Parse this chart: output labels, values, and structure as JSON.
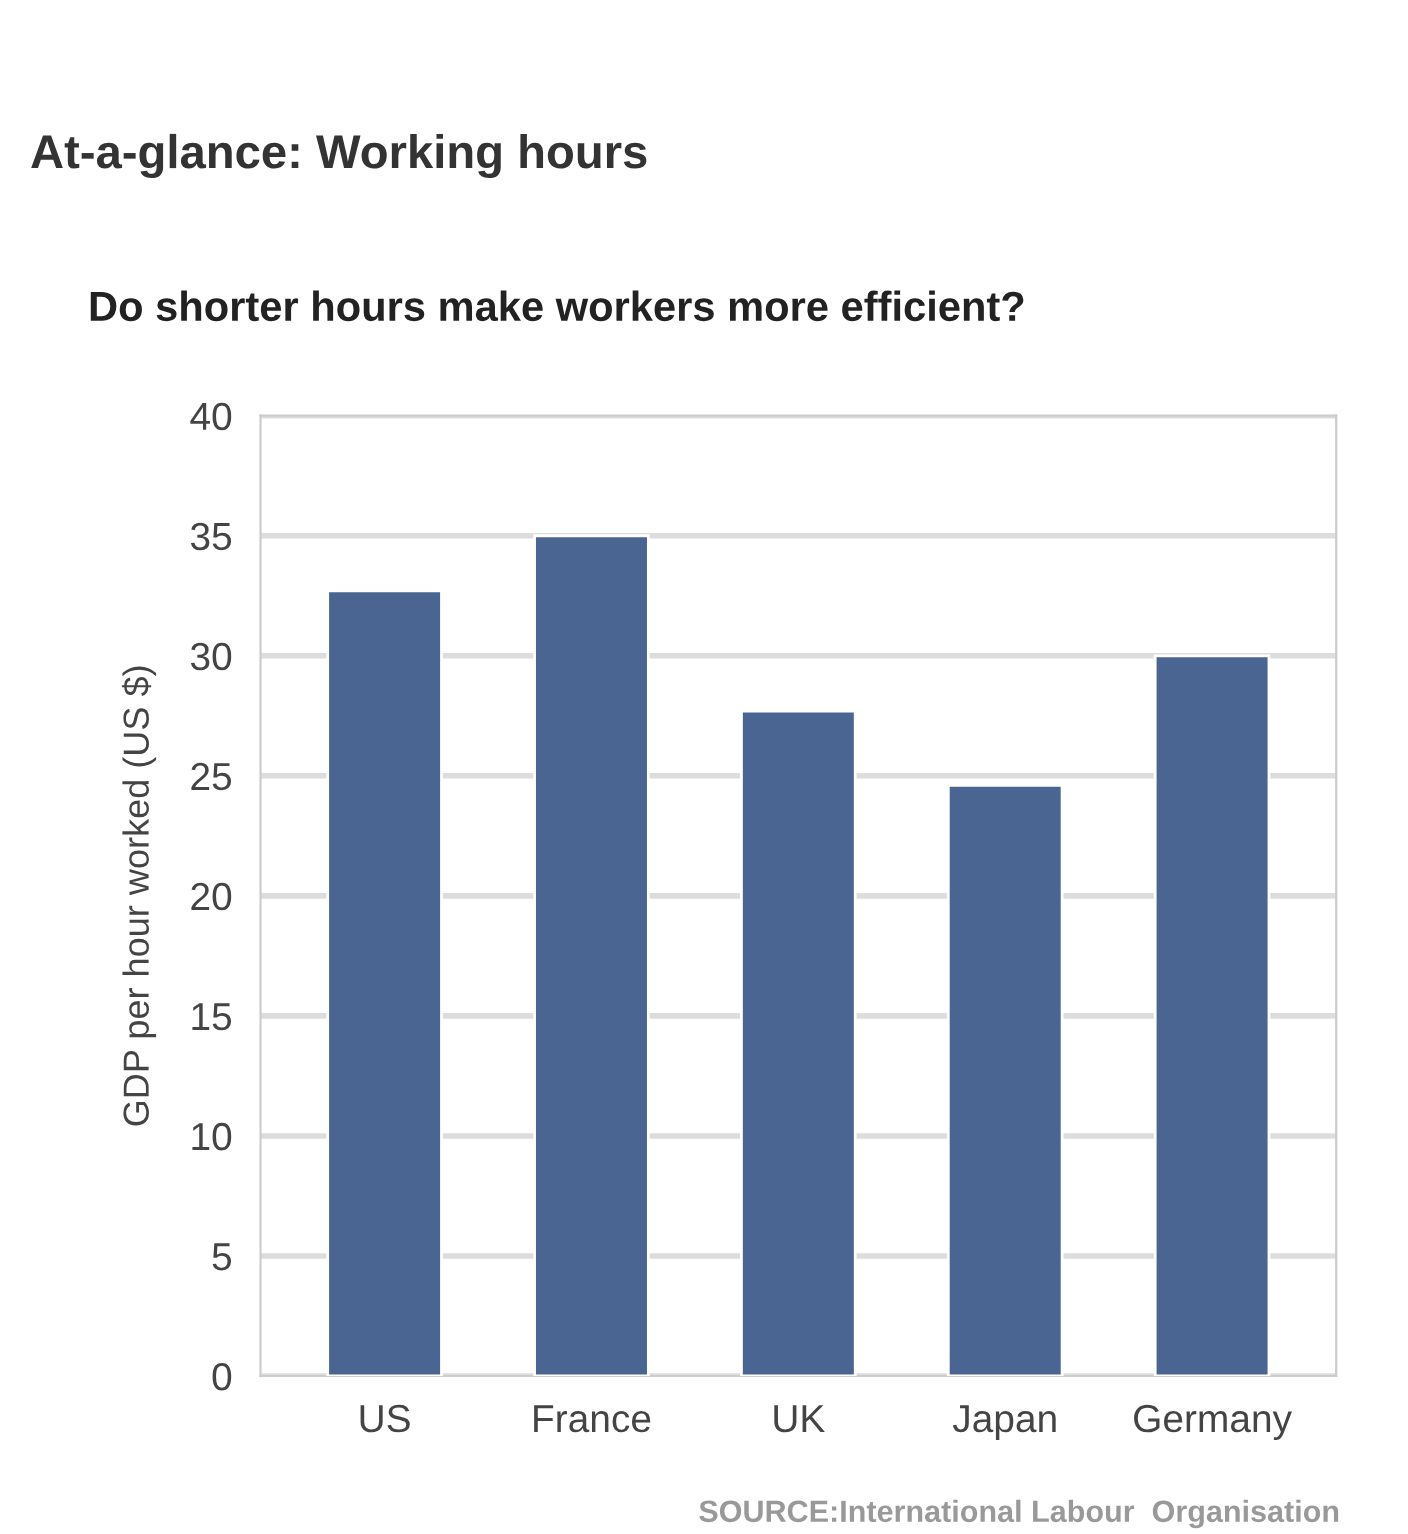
{
  "chart_data": {
    "type": "bar",
    "subtitle": "At-a-glance: Working hours",
    "title": "Do shorter hours make workers more efficient?",
    "ylabel": "GDP per hour worked (US $)",
    "categories": [
      "US",
      "France",
      "UK",
      "Japan",
      "Germany"
    ],
    "values": [
      32.7,
      35,
      27.7,
      24.6,
      30
    ],
    "color": "#4a6592",
    "ylim": [
      0,
      40
    ],
    "yticks": [
      0,
      5,
      10,
      15,
      20,
      25,
      30,
      35,
      40
    ],
    "grid": "y",
    "annotations": [
      "SOURCE:International Labour  Organisation"
    ]
  }
}
